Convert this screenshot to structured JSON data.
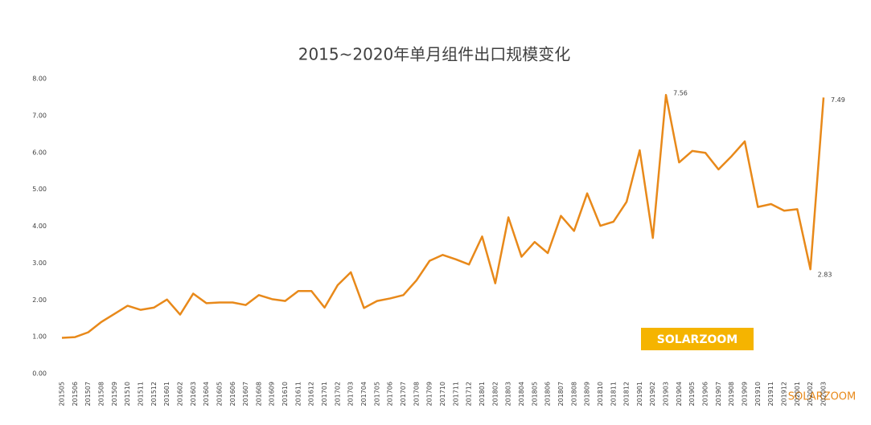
{
  "chart_data": {
    "type": "line",
    "title": "2015~2020年单月组件出口规模变化",
    "categories": [
      "201505",
      "201506",
      "201507",
      "201508",
      "201509",
      "201510",
      "201511",
      "201512",
      "201601",
      "201602",
      "201603",
      "201604",
      "201605",
      "201606",
      "201607",
      "201608",
      "201609",
      "201610",
      "201611",
      "201612",
      "201701",
      "201702",
      "201703",
      "201704",
      "201705",
      "201706",
      "201707",
      "201708",
      "201709",
      "201710",
      "201711",
      "201712",
      "201801",
      "201802",
      "201803",
      "201804",
      "201805",
      "201806",
      "201807",
      "201808",
      "201809",
      "201810",
      "201811",
      "201812",
      "201901",
      "201902",
      "201903",
      "201904",
      "201905",
      "201906",
      "201907",
      "201908",
      "201909",
      "201910",
      "201911",
      "201912",
      "202001",
      "202002",
      "202003"
    ],
    "series": [
      {
        "color": "#e8891a",
        "values": [
          0.97,
          0.99,
          1.12,
          1.4,
          1.62,
          1.84,
          1.73,
          1.79,
          2.01,
          1.6,
          2.17,
          1.91,
          1.93,
          1.93,
          1.86,
          2.13,
          2.02,
          1.97,
          2.24,
          2.24,
          1.79,
          2.4,
          2.75,
          1.78,
          1.97,
          2.04,
          2.13,
          2.53,
          3.06,
          3.22,
          3.1,
          2.96,
          3.72,
          2.45,
          4.24,
          3.17,
          3.57,
          3.27,
          4.28,
          3.87,
          4.89,
          4.01,
          4.12,
          4.66,
          6.06,
          3.68,
          7.56,
          5.73,
          6.04,
          5.99,
          5.54,
          5.9,
          6.3,
          4.52,
          4.6,
          4.42,
          4.46,
          2.83,
          7.49
        ],
        "value_labels": [
          null,
          null,
          null,
          null,
          null,
          null,
          null,
          null,
          null,
          null,
          null,
          null,
          null,
          null,
          null,
          null,
          null,
          null,
          null,
          null,
          null,
          null,
          null,
          null,
          null,
          null,
          null,
          null,
          null,
          null,
          null,
          null,
          null,
          null,
          null,
          null,
          null,
          null,
          null,
          null,
          null,
          null,
          null,
          null,
          null,
          null,
          "7.56",
          null,
          null,
          null,
          null,
          null,
          null,
          null,
          null,
          null,
          null,
          "2.83",
          "7.49"
        ]
      }
    ],
    "ylim": [
      0,
      8
    ],
    "yticks": [
      {
        "value": 0,
        "label": "0.00"
      },
      {
        "value": 1,
        "label": "1.00"
      },
      {
        "value": 2,
        "label": "2.00"
      },
      {
        "value": 3,
        "label": "3.00"
      },
      {
        "value": 4,
        "label": "4.00"
      },
      {
        "value": 5,
        "label": "5.00"
      },
      {
        "value": 6,
        "label": "6.00"
      },
      {
        "value": 7,
        "label": "7.00"
      },
      {
        "value": 8,
        "label": "8.00"
      }
    ],
    "grid": false,
    "watermarks": [
      "SOLARZOOM",
      "SOLARZOOM"
    ]
  }
}
